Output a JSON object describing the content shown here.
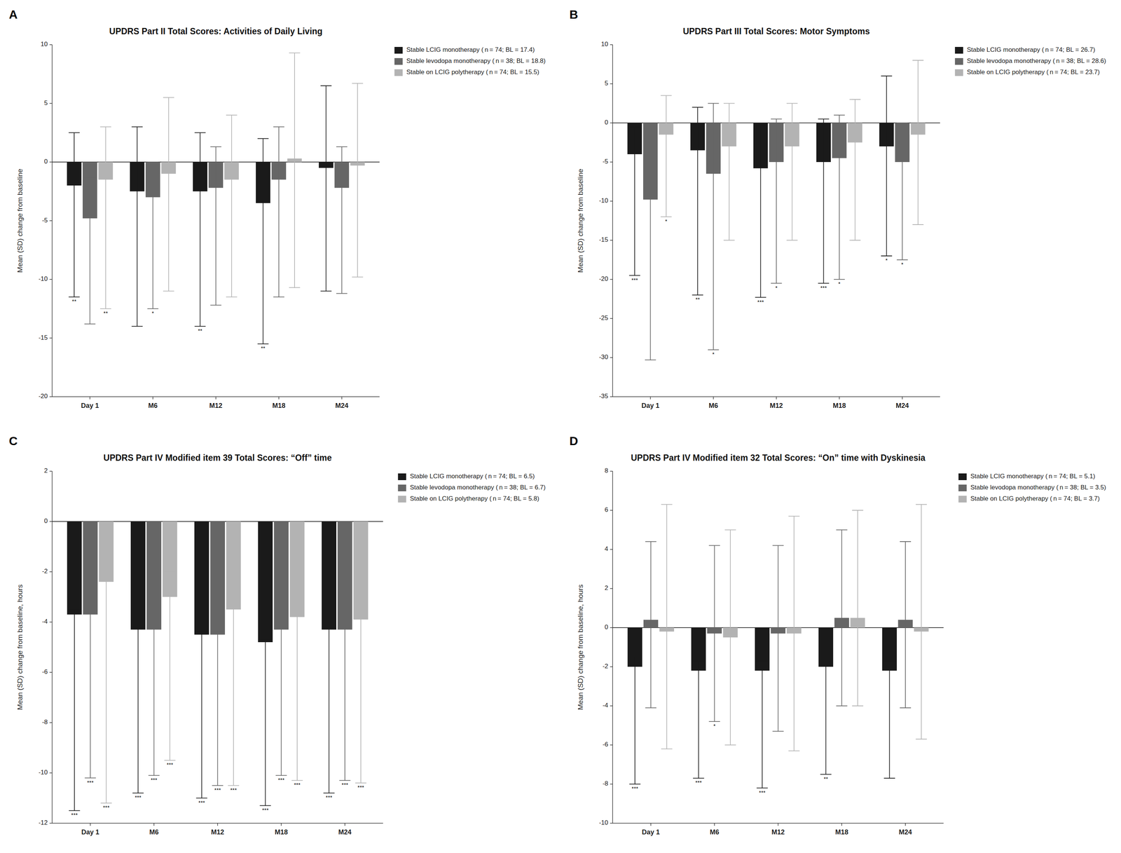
{
  "chart_data": [
    {
      "type": "bar",
      "panel_label": "A",
      "title": "UPDRS Part II Total Scores: Activities of Daily Living",
      "y_label": "Mean (SD) change from baseline",
      "categories": [
        "Day 1",
        "M6",
        "M12",
        "M18",
        "M24"
      ],
      "ylim": [
        -20,
        10
      ],
      "yticks": [
        -20,
        -15,
        -10,
        -5,
        0,
        5,
        10
      ],
      "grid": false,
      "legend": "upper right",
      "series": [
        {
          "name": "Stable LCIG monotherapy ( n = 74; BL = 17.4)",
          "color": "#1a1a1a",
          "values": [
            -2.0,
            -2.5,
            -2.5,
            -3.5,
            -0.5
          ],
          "error_low": [
            9.5,
            11.5,
            11.5,
            12.0,
            10.5
          ],
          "error_high": [
            4.5,
            5.5,
            5.0,
            5.5,
            7.0
          ],
          "significance": [
            "**",
            null,
            "**",
            "**",
            null
          ]
        },
        {
          "name": "Stable levodopa monotherapy ( n = 38; BL = 18.8)",
          "color": "#666666",
          "values": [
            -4.8,
            -3.0,
            -2.2,
            -1.5,
            -2.2
          ],
          "error_low": [
            9.0,
            9.5,
            10.0,
            10.0,
            9.0
          ],
          "error_high": [
            3.5,
            3.0,
            3.5,
            4.5,
            3.5
          ],
          "significance": [
            null,
            "*",
            null,
            null,
            null
          ]
        },
        {
          "name": "Stable on LCIG polytherapy ( n = 74; BL = 15.5)",
          "color": "#b3b3b3",
          "values": [
            -1.5,
            -1.0,
            -1.5,
            0.3,
            -0.3
          ],
          "error_low": [
            11.0,
            10.0,
            10.0,
            11.0,
            9.5
          ],
          "error_high": [
            4.5,
            6.5,
            5.5,
            9.0,
            7.0
          ],
          "significance": [
            "**",
            null,
            null,
            null,
            null
          ]
        }
      ]
    },
    {
      "type": "bar",
      "panel_label": "B",
      "title": "UPDRS Part III Total Scores: Motor Symptoms",
      "y_label": "Mean (SD) change from baseline",
      "categories": [
        "Day 1",
        "M6",
        "M12",
        "M18",
        "M24"
      ],
      "ylim": [
        -35,
        10
      ],
      "yticks": [
        -35,
        -30,
        -25,
        -20,
        -15,
        -10,
        -5,
        0,
        5,
        10
      ],
      "grid": false,
      "legend": "upper right",
      "series": [
        {
          "name": "Stable LCIG monotherapy ( n = 74; BL = 26.7)",
          "color": "#1a1a1a",
          "values": [
            -4.0,
            -3.5,
            -5.8,
            -5.0,
            -3.0
          ],
          "error_low": [
            15.5,
            18.5,
            16.5,
            15.5,
            14.0
          ],
          "error_high": [
            3.5,
            5.5,
            5.5,
            5.5,
            9.0
          ],
          "significance": [
            "***",
            "**",
            "***",
            "***",
            "*"
          ]
        },
        {
          "name": "Stable levodopa monotherapy ( n = 38; BL = 28.6)",
          "color": "#666666",
          "values": [
            -9.8,
            -6.5,
            -5.0,
            -4.5,
            -5.0
          ],
          "error_low": [
            20.5,
            22.5,
            15.5,
            15.5,
            12.5
          ],
          "error_high": [
            1.5,
            9.0,
            5.5,
            5.5,
            5.0
          ],
          "significance": [
            null,
            "*",
            "*",
            "*",
            "*"
          ]
        },
        {
          "name": "Stable on LCIG polytherapy ( n = 74; BL = 23.7)",
          "color": "#b3b3b3",
          "values": [
            -1.5,
            -3.0,
            -3.0,
            -2.5,
            -1.5
          ],
          "error_low": [
            10.5,
            12.0,
            12.0,
            12.5,
            11.5
          ],
          "error_high": [
            5.0,
            5.5,
            5.5,
            5.5,
            9.5
          ],
          "significance": [
            "*",
            null,
            null,
            null,
            null
          ]
        }
      ]
    },
    {
      "type": "bar",
      "panel_label": "C",
      "title": "UPDRS Part IV Modified item 39 Total Scores: “Off” time",
      "y_label": "Mean (SD) change from baseline, hours",
      "categories": [
        "Day 1",
        "M6",
        "M12",
        "M18",
        "M24"
      ],
      "ylim": [
        -12,
        2
      ],
      "yticks": [
        -12,
        -10,
        -8,
        -6,
        -4,
        -2,
        0,
        2
      ],
      "grid": false,
      "legend": "upper right",
      "series": [
        {
          "name": "Stable LCIG monotherapy ( n = 74; BL = 6.5)",
          "color": "#1a1a1a",
          "values": [
            -3.7,
            -4.3,
            -4.5,
            -4.8,
            -4.3
          ],
          "error_low": [
            7.8,
            6.5,
            6.5,
            6.5,
            6.5
          ],
          "error_high": [
            0.2,
            0.1,
            0.1,
            0.1,
            0.1
          ],
          "significance": [
            "***",
            "***",
            "***",
            "***",
            "***"
          ]
        },
        {
          "name": "Stable levodopa monotherapy ( n = 38; BL = 6.7)",
          "color": "#666666",
          "values": [
            -3.7,
            -4.3,
            -4.5,
            -4.3,
            -4.3
          ],
          "error_low": [
            6.5,
            5.8,
            6.0,
            5.8,
            6.0
          ],
          "error_high": [
            0.1,
            0.1,
            0.1,
            0.1,
            0.1
          ],
          "significance": [
            "***",
            "***",
            "***",
            "***",
            "***"
          ]
        },
        {
          "name": "Stable on LCIG polytherapy ( n = 74; BL = 5.8)",
          "color": "#b3b3b3",
          "values": [
            -2.4,
            -3.0,
            -3.5,
            -3.8,
            -3.9
          ],
          "error_low": [
            8.8,
            6.5,
            7.0,
            6.5,
            6.5
          ],
          "error_high": [
            1.0,
            1.0,
            0.5,
            0.5,
            0.5
          ],
          "significance": [
            "***",
            "***",
            "***",
            "***",
            "***"
          ]
        }
      ]
    },
    {
      "type": "bar",
      "panel_label": "D",
      "title": "UPDRS Part IV Modified item 32 Total Scores: “On” time with Dyskinesia",
      "y_label": "Mean (SD) change from baseline, hours",
      "categories": [
        "Day 1",
        "M6",
        "M12",
        "M18",
        "M24"
      ],
      "ylim": [
        -10,
        8
      ],
      "yticks": [
        -10,
        -8,
        -6,
        -4,
        -2,
        0,
        2,
        4,
        6,
        8
      ],
      "grid": false,
      "legend": "upper right",
      "series": [
        {
          "name": "Stable LCIG monotherapy ( n = 74; BL = 5.1)",
          "color": "#1a1a1a",
          "values": [
            -2.0,
            -2.2,
            -2.2,
            -2.0,
            -2.2
          ],
          "error_low": [
            6.0,
            5.5,
            6.0,
            5.5,
            5.5
          ],
          "error_high": [
            0.5,
            0.5,
            0.5,
            0.5,
            0.5
          ],
          "significance": [
            "***",
            "***",
            "***",
            "**",
            null
          ]
        },
        {
          "name": "Stable levodopa monotherapy ( n = 38; BL = 3.5)",
          "color": "#666666",
          "values": [
            0.4,
            -0.3,
            -0.3,
            0.5,
            0.4
          ],
          "error_low": [
            4.5,
            4.5,
            5.0,
            4.5,
            4.5
          ],
          "error_high": [
            4.0,
            4.5,
            4.5,
            4.5,
            4.0
          ],
          "significance": [
            null,
            "*",
            null,
            null,
            null
          ]
        },
        {
          "name": "Stable on LCIG polytherapy ( n = 74; BL = 3.7)",
          "color": "#b3b3b3",
          "values": [
            -0.2,
            -0.5,
            -0.3,
            0.5,
            -0.2
          ],
          "error_low": [
            6.0,
            5.5,
            6.0,
            4.5,
            5.5
          ],
          "error_high": [
            6.5,
            5.5,
            6.0,
            5.5,
            6.5
          ],
          "significance": [
            null,
            null,
            null,
            null,
            null
          ]
        }
      ]
    }
  ]
}
